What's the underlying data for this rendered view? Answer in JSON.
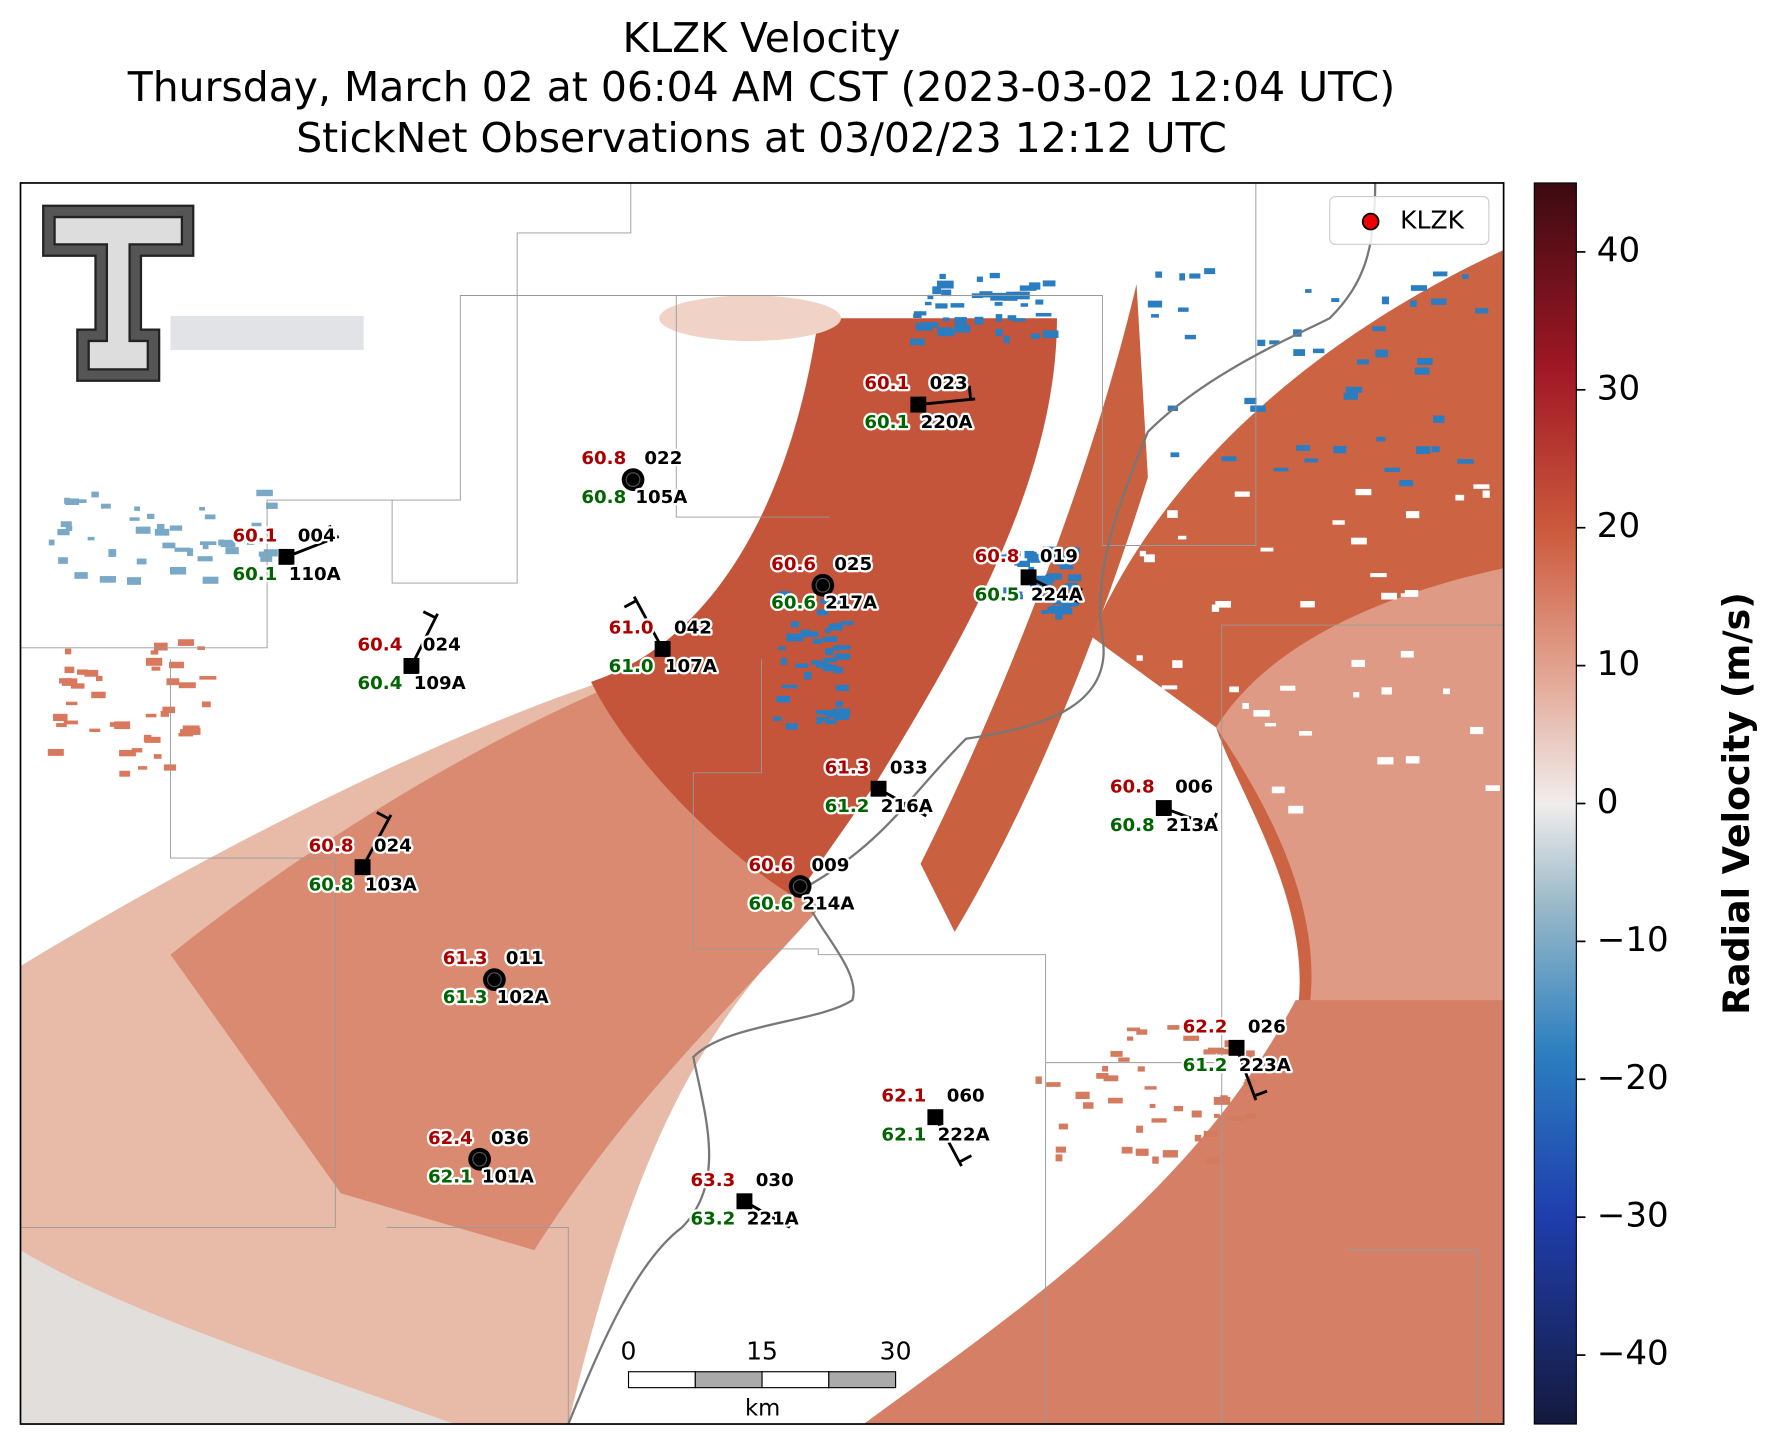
{
  "title": "KLZK Velocity",
  "subtitle": [
    "Thursday, March 02 at 06:04 AM CST (2023-03-02 12:04 UTC)",
    "StickNet Observations at 03/02/23 12:12 UTC"
  ],
  "legend": {
    "label": "KLZK"
  },
  "colorbar": {
    "label": "Radial Velocity (m/s)",
    "lim": [
      -45,
      45
    ],
    "ticks": [
      {
        "value": -40,
        "label": "−40"
      },
      {
        "value": -30,
        "label": "−30"
      },
      {
        "value": -20,
        "label": "−20"
      },
      {
        "value": -10,
        "label": "−10"
      },
      0,
      10,
      20,
      30,
      40
    ]
  },
  "scale_bar": {
    "ticks": [
      0,
      15,
      30
    ],
    "unit": "km"
  },
  "stations": [
    {
      "temperature": "60.1",
      "dewpoint": "60.1",
      "id": "023",
      "name": "220A"
    },
    {
      "temperature": "60.8",
      "dewpoint": "60.8",
      "id": "022",
      "name": "105A"
    },
    {
      "temperature": "60.1",
      "dewpoint": "60.1",
      "id": "004",
      "name": "110A"
    },
    {
      "temperature": "60.6",
      "dewpoint": "60.6",
      "id": "025",
      "name": "217A"
    },
    {
      "temperature": "60.8",
      "dewpoint": "60.5",
      "id": "019",
      "name": "224A"
    },
    {
      "temperature": "60.4",
      "dewpoint": "60.4",
      "id": "024",
      "name": "109A"
    },
    {
      "temperature": "61.0",
      "dewpoint": "61.0",
      "id": "042",
      "name": "107A"
    },
    {
      "temperature": "61.3",
      "dewpoint": "61.2",
      "id": "033",
      "name": "216A"
    },
    {
      "temperature": "60.8",
      "dewpoint": "60.8",
      "id": "006",
      "name": "213A"
    },
    {
      "temperature": "60.8",
      "dewpoint": "60.8",
      "id": "024",
      "name": "103A"
    },
    {
      "temperature": "60.6",
      "dewpoint": "60.6",
      "id": "009",
      "name": "214A"
    },
    {
      "temperature": "61.3",
      "dewpoint": "61.3",
      "id": "011",
      "name": "102A"
    },
    {
      "temperature": "62.2",
      "dewpoint": "61.2",
      "id": "026",
      "name": "223A"
    },
    {
      "temperature": "62.1",
      "dewpoint": "62.1",
      "id": "060",
      "name": "222A"
    },
    {
      "temperature": "62.4",
      "dewpoint": "62.1",
      "id": "036",
      "name": "101A"
    },
    {
      "temperature": "63.3",
      "dewpoint": "63.2",
      "id": "030",
      "name": "221A"
    }
  ]
}
